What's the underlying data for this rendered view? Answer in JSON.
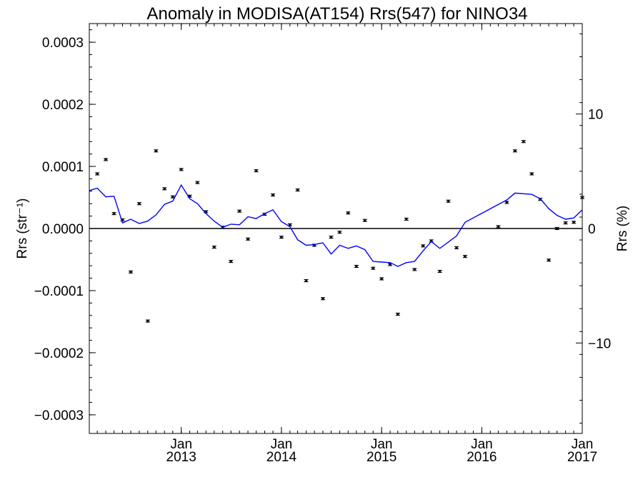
{
  "chart_data": {
    "type": "scatter",
    "title": "Anomaly in MODISA(AT154) Rrs(547) for NINO34",
    "ylabel": "Rrs (str⁻¹)",
    "y2label": "Rrs (%)",
    "xlim": [
      "2012-02-01",
      "2017-01-01"
    ],
    "ylim": [
      -0.00033,
      0.00033
    ],
    "y2lim": [
      -17.9,
      17.9
    ],
    "grid": false,
    "zero_line": true,
    "x_ticks": [
      {
        "date": "2013-01-01",
        "month": "Jan",
        "year": "2013"
      },
      {
        "date": "2014-01-01",
        "month": "Jan",
        "year": "2014"
      },
      {
        "date": "2015-01-01",
        "month": "Jan",
        "year": "2015"
      },
      {
        "date": "2016-01-01",
        "month": "Jan",
        "year": "2016"
      },
      {
        "date": "2017-01-01",
        "month": "Jan",
        "year": "2017"
      }
    ],
    "y_ticks": [
      {
        "value": 0.0003,
        "label": "0.0003"
      },
      {
        "value": 0.0002,
        "label": "0.0002"
      },
      {
        "value": 0.0001,
        "label": "0.0001"
      },
      {
        "value": 0.0,
        "label": "0.0000"
      },
      {
        "value": -0.0001,
        "label": "−0.0001"
      },
      {
        "value": -0.0002,
        "label": "−0.0002"
      },
      {
        "value": -0.0003,
        "label": "−0.0003"
      }
    ],
    "y2_ticks": [
      {
        "value": 10,
        "label": "10"
      },
      {
        "value": 0,
        "label": "0"
      },
      {
        "value": -10,
        "label": "−10"
      }
    ],
    "series": [
      {
        "kind": "points_with_errorbars",
        "color": "#000000",
        "error": 1.5e-06,
        "points": [
          [
            "2012-03-01",
            8.8e-05
          ],
          [
            "2012-04-01",
            0.000111
          ],
          [
            "2012-05-01",
            2.4e-05
          ],
          [
            "2012-06-01",
            1.4e-05
          ],
          [
            "2012-07-01",
            -7e-05
          ],
          [
            "2012-08-01",
            4e-05
          ],
          [
            "2012-09-01",
            -0.000149
          ],
          [
            "2012-10-01",
            0.000125
          ],
          [
            "2012-11-01",
            6.4e-05
          ],
          [
            "2012-12-01",
            5.1e-05
          ],
          [
            "2013-01-01",
            9.5e-05
          ],
          [
            "2013-02-01",
            5.2e-05
          ],
          [
            "2013-03-01",
            7.4e-05
          ],
          [
            "2013-04-01",
            2.7e-05
          ],
          [
            "2013-05-01",
            -3e-05
          ],
          [
            "2013-06-01",
            2e-06
          ],
          [
            "2013-07-01",
            -5.3e-05
          ],
          [
            "2013-08-01",
            2.8e-05
          ],
          [
            "2013-09-01",
            -1.7e-05
          ],
          [
            "2013-10-01",
            9.3e-05
          ],
          [
            "2013-11-01",
            2.3e-05
          ],
          [
            "2013-12-01",
            5.4e-05
          ],
          [
            "2014-01-01",
            -1.4e-05
          ],
          [
            "2014-02-01",
            6e-06
          ],
          [
            "2014-03-01",
            6.2e-05
          ],
          [
            "2014-04-01",
            -8.4e-05
          ],
          [
            "2014-05-01",
            -2.7e-05
          ],
          [
            "2014-06-01",
            -0.000113
          ],
          [
            "2014-07-01",
            -1.4e-05
          ],
          [
            "2014-08-01",
            -6e-06
          ],
          [
            "2014-09-01",
            2.5e-05
          ],
          [
            "2014-10-01",
            -6.1e-05
          ],
          [
            "2014-11-01",
            1.3e-05
          ],
          [
            "2014-12-01",
            -6.4e-05
          ],
          [
            "2015-01-01",
            -8.1e-05
          ],
          [
            "2015-02-01",
            -5.8e-05
          ],
          [
            "2015-03-01",
            -0.000138
          ],
          [
            "2015-04-01",
            1.5e-05
          ],
          [
            "2015-05-01",
            -6.6e-05
          ],
          [
            "2015-06-01",
            -2.8e-05
          ],
          [
            "2015-07-01",
            -2e-05
          ],
          [
            "2015-08-01",
            -6.9e-05
          ],
          [
            "2015-09-01",
            4.4e-05
          ],
          [
            "2015-10-01",
            -3.1e-05
          ],
          [
            "2015-11-01",
            -4.5e-05
          ],
          [
            "2016-03-01",
            3e-06
          ],
          [
            "2016-04-01",
            4.2e-05
          ],
          [
            "2016-05-01",
            0.000125
          ],
          [
            "2016-06-01",
            0.00014
          ],
          [
            "2016-07-01",
            8.8e-05
          ],
          [
            "2016-08-01",
            4.7e-05
          ],
          [
            "2016-09-01",
            -5.1e-05
          ],
          [
            "2016-10-01",
            0.0
          ],
          [
            "2016-11-01",
            9e-06
          ],
          [
            "2016-12-01",
            1e-05
          ],
          [
            "2017-01-01",
            5e-05
          ]
        ]
      },
      {
        "kind": "line",
        "color": "#0000ff",
        "points": [
          [
            "2012-02-01",
            6.1e-05
          ],
          [
            "2012-03-01",
            6.5e-05
          ],
          [
            "2012-04-01",
            5.1e-05
          ],
          [
            "2012-05-01",
            5.2e-05
          ],
          [
            "2012-06-01",
            9e-06
          ],
          [
            "2012-07-01",
            1.5e-05
          ],
          [
            "2012-08-01",
            8e-06
          ],
          [
            "2012-09-01",
            1.2e-05
          ],
          [
            "2012-10-01",
            2.2e-05
          ],
          [
            "2012-11-01",
            3.9e-05
          ],
          [
            "2012-12-01",
            4.4e-05
          ],
          [
            "2013-01-01",
            7e-05
          ],
          [
            "2013-02-01",
            4.8e-05
          ],
          [
            "2013-03-01",
            4e-05
          ],
          [
            "2013-04-01",
            2.4e-05
          ],
          [
            "2013-05-01",
            1.2e-05
          ],
          [
            "2013-06-01",
            2e-06
          ],
          [
            "2013-07-01",
            7e-06
          ],
          [
            "2013-08-01",
            6e-06
          ],
          [
            "2013-09-01",
            1.9e-05
          ],
          [
            "2013-10-01",
            1.6e-05
          ],
          [
            "2013-11-01",
            2.4e-05
          ],
          [
            "2013-12-01",
            3e-05
          ],
          [
            "2014-01-01",
            1.1e-05
          ],
          [
            "2014-02-01",
            3e-06
          ],
          [
            "2014-03-01",
            -1.8e-05
          ],
          [
            "2014-04-01",
            -2.7e-05
          ],
          [
            "2014-05-01",
            -2.6e-05
          ],
          [
            "2014-06-01",
            -2.3e-05
          ],
          [
            "2014-07-01",
            -4.1e-05
          ],
          [
            "2014-08-01",
            -2.7e-05
          ],
          [
            "2014-09-01",
            -3.2e-05
          ],
          [
            "2014-10-01",
            -2.8e-05
          ],
          [
            "2014-11-01",
            -3.4e-05
          ],
          [
            "2014-12-01",
            -5.3e-05
          ],
          [
            "2015-01-01",
            -5.4e-05
          ],
          [
            "2015-02-01",
            -5.5e-05
          ],
          [
            "2015-03-01",
            -6.1e-05
          ],
          [
            "2015-04-01",
            -5.5e-05
          ],
          [
            "2015-05-01",
            -5.3e-05
          ],
          [
            "2015-06-01",
            -3.6e-05
          ],
          [
            "2015-07-01",
            -2.1e-05
          ],
          [
            "2015-08-01",
            -3.2e-05
          ],
          [
            "2015-09-01",
            -2.2e-05
          ],
          [
            "2015-10-01",
            -1.2e-05
          ],
          [
            "2015-11-01",
            1e-05
          ],
          [
            "2016-04-01",
            4.6e-05
          ],
          [
            "2016-05-01",
            5.7e-05
          ],
          [
            "2016-06-01",
            5.6e-05
          ],
          [
            "2016-07-01",
            5.5e-05
          ],
          [
            "2016-08-01",
            4.8e-05
          ],
          [
            "2016-09-01",
            3.2e-05
          ],
          [
            "2016-10-01",
            2.1e-05
          ],
          [
            "2016-11-01",
            1.5e-05
          ],
          [
            "2016-12-01",
            1.7e-05
          ],
          [
            "2017-01-01",
            3e-05
          ]
        ]
      }
    ]
  }
}
